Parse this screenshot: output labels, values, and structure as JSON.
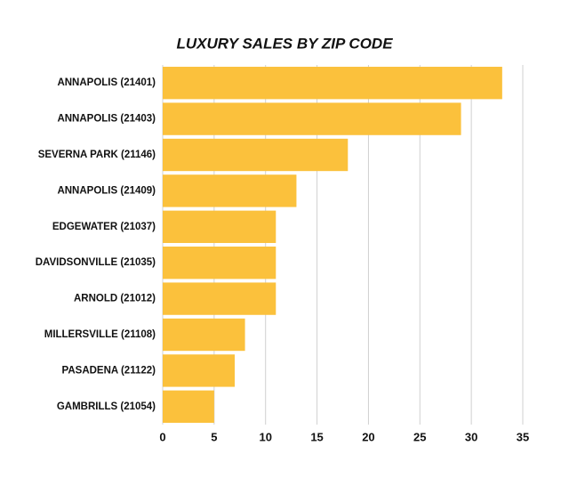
{
  "chart_data": {
    "type": "bar",
    "orientation": "horizontal",
    "title": "LUXURY SALES BY ZIP CODE",
    "categories": [
      "ANNAPOLIS (21401)",
      "ANNAPOLIS (21403)",
      "SEVERNA PARK (21146)",
      "ANNAPOLIS (21409)",
      "EDGEWATER (21037)",
      "DAVIDSONVILLE (21035)",
      "ARNOLD (21012)",
      "MILLERSVILLE (21108)",
      "PASADENA (21122)",
      "GAMBRILLS (21054)"
    ],
    "values": [
      33,
      29,
      18,
      13,
      11,
      11,
      11,
      8,
      7,
      5
    ],
    "color": "#fbc13c",
    "xlim": [
      0,
      35
    ],
    "xticks": [
      0,
      5,
      10,
      15,
      20,
      25,
      30,
      35
    ],
    "grid": true
  }
}
